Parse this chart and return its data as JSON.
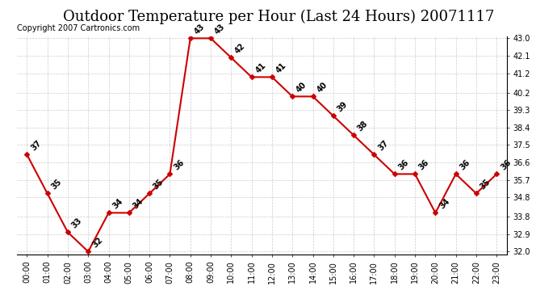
{
  "title": "Outdoor Temperature per Hour (Last 24 Hours) 20071117",
  "copyright_text": "Copyright 2007 Cartronics.com",
  "hours": [
    "00:00",
    "01:00",
    "02:00",
    "03:00",
    "04:00",
    "05:00",
    "06:00",
    "07:00",
    "08:00",
    "09:00",
    "10:00",
    "11:00",
    "12:00",
    "13:00",
    "14:00",
    "15:00",
    "16:00",
    "17:00",
    "18:00",
    "19:00",
    "20:00",
    "21:00",
    "22:00",
    "23:00"
  ],
  "temperatures": [
    37,
    35,
    33,
    32,
    34,
    34,
    35,
    36,
    43,
    43,
    42,
    41,
    41,
    40,
    40,
    39,
    38,
    37,
    36,
    36,
    34,
    36,
    35,
    36
  ],
  "line_color": "#cc0000",
  "marker": "D",
  "marker_size": 3,
  "ylim_min": 32.0,
  "ylim_max": 43.0,
  "ytick_values": [
    32.0,
    32.9,
    33.8,
    34.8,
    35.7,
    36.6,
    37.5,
    38.4,
    39.3,
    40.2,
    41.2,
    42.1,
    43.0
  ],
  "background_color": "#ffffff",
  "grid_color": "#cccccc",
  "title_fontsize": 13,
  "tick_fontsize": 7,
  "copyright_fontsize": 7,
  "annotation_fontsize": 7,
  "annotation_color": "#000000"
}
